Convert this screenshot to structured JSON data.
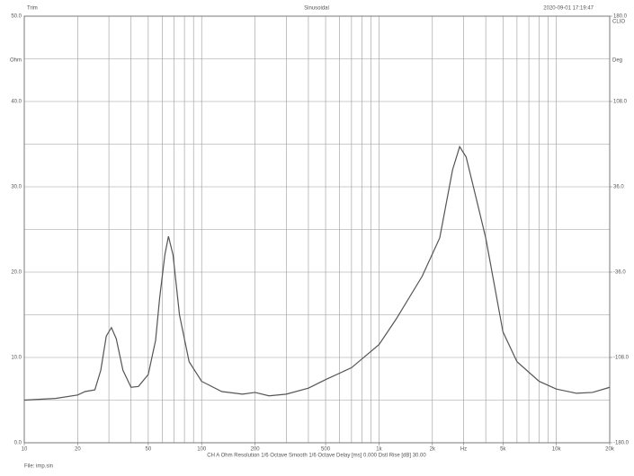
{
  "chart_data": {
    "type": "line",
    "title": "Sinusoidal",
    "header_left": "Trim",
    "header_right": "2020-09-01 17:19:47",
    "y2_header": "CLIO",
    "ylabel": "Ohm",
    "y2label": "Deg",
    "footer": "CH A  Ohm   Resolution 1/6 Octave   Smooth 1/6 Octave   Delay [ms] 0.000   Dstl Rise [dB] 30.00",
    "file_label": "File: imp.sin",
    "xscale": "log",
    "xlim": [
      10,
      20000
    ],
    "ylim": [
      0,
      50
    ],
    "y2lim": [
      -180,
      180
    ],
    "xticks": [
      10,
      20,
      50,
      100,
      200,
      500,
      {
        "value": 1000,
        "label": "1k"
      },
      {
        "value": 2000,
        "label": "2k"
      },
      {
        "value": 3000,
        "label": "Hz"
      },
      {
        "value": 5000,
        "label": "5k"
      },
      {
        "value": 10000,
        "label": "10k"
      },
      {
        "value": 20000,
        "label": "20k"
      }
    ],
    "x_grid": [
      10,
      20,
      30,
      40,
      50,
      60,
      70,
      80,
      90,
      100,
      200,
      300,
      400,
      500,
      600,
      700,
      800,
      900,
      1000,
      2000,
      3000,
      4000,
      5000,
      6000,
      7000,
      8000,
      9000,
      10000,
      20000
    ],
    "yticks": [
      {
        "value": 0,
        "label": "0.0"
      },
      {
        "value": 10,
        "label": "10.0"
      },
      {
        "value": 20,
        "label": "20.0"
      },
      {
        "value": 30,
        "label": "30.0"
      },
      {
        "value": 40,
        "label": "40.0"
      },
      {
        "value": 50,
        "label": "50.0"
      }
    ],
    "y_grid": [
      5,
      15,
      25,
      35,
      45
    ],
    "y2ticks": [
      {
        "value": -180,
        "label": "-180.0"
      },
      {
        "value": -108,
        "label": "-108.0"
      },
      {
        "value": -36,
        "label": "-36.0"
      },
      {
        "value": 36,
        "label": "36.0"
      },
      {
        "value": 108,
        "label": "108.0"
      },
      {
        "value": 180,
        "label": "180.0"
      }
    ],
    "grid": true,
    "x": [
      10,
      15,
      20,
      22,
      25,
      27,
      29,
      31,
      33,
      36,
      40,
      44,
      50,
      55,
      58,
      62,
      65,
      69,
      75,
      85,
      100,
      130,
      170,
      200,
      240,
      300,
      400,
      500,
      700,
      1000,
      1250,
      1750,
      2200,
      2600,
      2850,
      3100,
      3500,
      4000,
      5000,
      6000,
      8000,
      10000,
      13000,
      16000,
      20000
    ],
    "series": [
      {
        "name": "Ohm",
        "color": "#555555",
        "values": [
          5.0,
          5.2,
          5.6,
          6.0,
          6.2,
          8.5,
          12.5,
          13.5,
          12.2,
          8.5,
          6.5,
          6.6,
          8.0,
          12,
          17,
          22,
          24.2,
          22,
          15,
          9.5,
          7.2,
          6.0,
          5.7,
          5.9,
          5.5,
          5.7,
          6.4,
          7.4,
          8.8,
          11.5,
          14.5,
          19.5,
          24,
          32,
          34.7,
          33.5,
          29,
          24,
          13,
          9.5,
          7.2,
          6.3,
          5.8,
          5.9,
          6.5
        ]
      }
    ]
  }
}
